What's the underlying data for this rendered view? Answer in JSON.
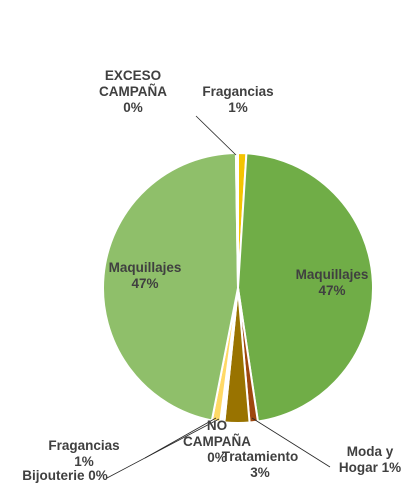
{
  "chart_data": {
    "type": "pie",
    "slices": [
      {
        "label_lines": [
          "Fragancias",
          "1%"
        ],
        "value": 1,
        "color": "#f5c400"
      },
      {
        "label_lines": [
          "Maquillajes",
          "47%"
        ],
        "value": 47,
        "color": "#70ad47"
      },
      {
        "label_lines": [
          "Moda y",
          "Hogar 1%"
        ],
        "value": 1,
        "color": "#9e480e"
      },
      {
        "label_lines": [
          "Tratamiento",
          "3%"
        ],
        "value": 3,
        "color": "#997300"
      },
      {
        "label_lines": [
          "NO",
          "CAMPAÑA",
          "0%"
        ],
        "value": 0.25,
        "color": "#c9b458"
      },
      {
        "label_lines": [
          "Bijouterie 0%"
        ],
        "value": 0.25,
        "color": "#a9d18e"
      },
      {
        "label_lines": [
          "Fragancias",
          "1%"
        ],
        "value": 1,
        "color": "#ffd966"
      },
      {
        "label_lines": [
          "Maquillajes",
          "47%"
        ],
        "value": 47,
        "color": "#8fbf6a"
      },
      {
        "label_lines": [
          "EXCESO",
          "CAMPAÑA",
          "0%"
        ],
        "value": 0.25,
        "color": "#c5e0b4"
      }
    ]
  }
}
